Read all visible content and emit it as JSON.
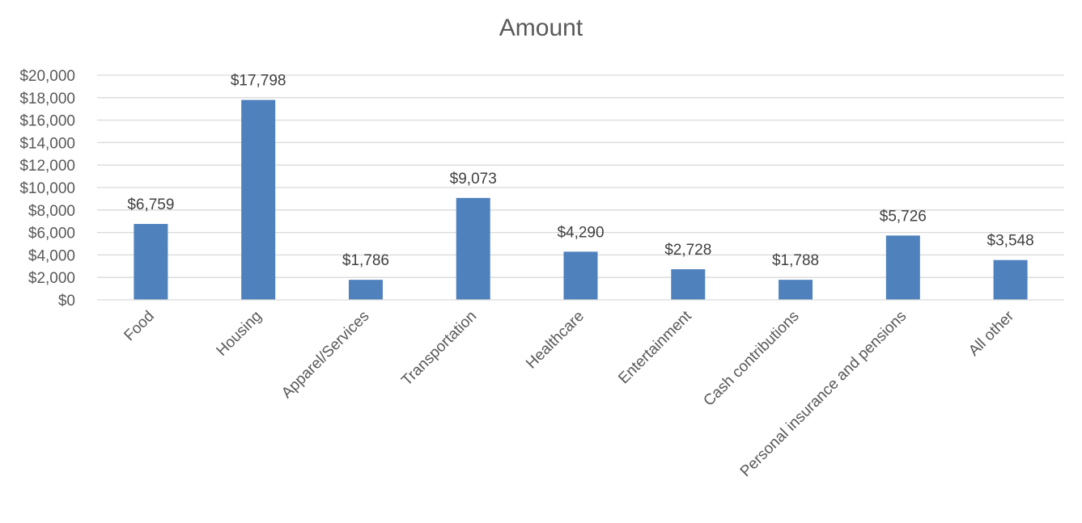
{
  "chart_data": {
    "type": "bar",
    "title": "Amount",
    "xlabel": "",
    "ylabel": "",
    "categories": [
      "Food",
      "Housing",
      "Apparel/Services",
      "Transportation",
      "Healthcare",
      "Entertainment",
      "Cash contributions",
      "Personal insurance and pensions",
      "All other"
    ],
    "values": [
      6759,
      17798,
      1786,
      9073,
      4290,
      2728,
      1788,
      5726,
      3548
    ],
    "data_labels": [
      "$6,759",
      "$17,798",
      "$1,786",
      "$9,073",
      "$4,290",
      "$2,728",
      "$1,788",
      "$5,726",
      "$3,548"
    ],
    "ylim": [
      0,
      20000
    ],
    "y_ticks": [
      0,
      2000,
      4000,
      6000,
      8000,
      10000,
      12000,
      14000,
      16000,
      18000,
      20000
    ],
    "y_tick_labels": [
      "$0",
      "$2,000",
      "$4,000",
      "$6,000",
      "$8,000",
      "$10,000",
      "$12,000",
      "$14,000",
      "$16,000",
      "$18,000",
      "$20,000"
    ],
    "grid": true,
    "legend": "none",
    "bar_color": "#4f81bd"
  }
}
